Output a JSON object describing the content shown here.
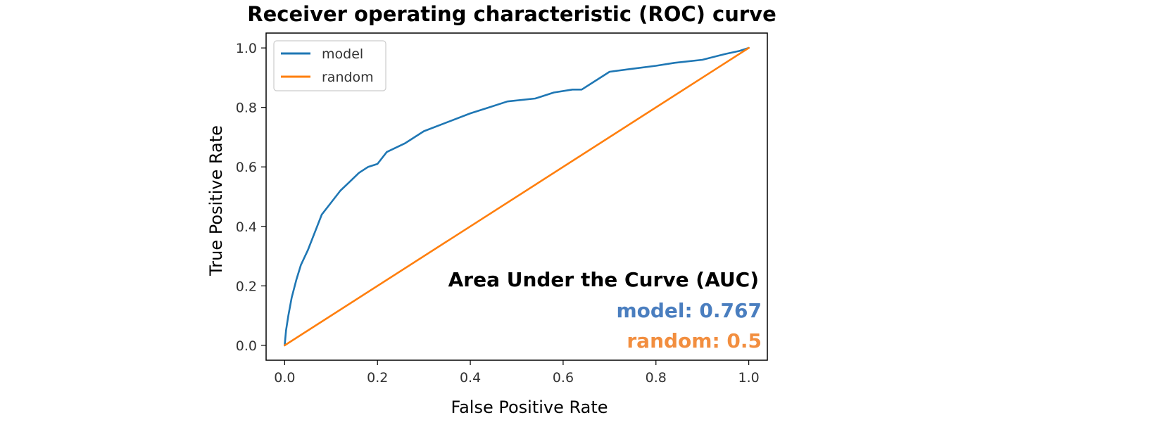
{
  "chart_data": {
    "type": "line",
    "title": "Receiver operating characteristic (ROC) curve",
    "xlabel": "False Positive Rate",
    "ylabel": "True Positive Rate",
    "xlim": [
      -0.04,
      1.04
    ],
    "ylim": [
      -0.05,
      1.05
    ],
    "xticks": [
      0.0,
      0.2,
      0.4,
      0.6,
      0.8,
      1.0
    ],
    "yticks": [
      0.0,
      0.2,
      0.4,
      0.6,
      0.8,
      1.0
    ],
    "xtick_labels": [
      "0.0",
      "0.2",
      "0.4",
      "0.6",
      "0.8",
      "1.0"
    ],
    "ytick_labels": [
      "0.0",
      "0.2",
      "0.4",
      "0.6",
      "0.8",
      "1.0"
    ],
    "grid": false,
    "legend_position": "top-left",
    "series": [
      {
        "name": "model",
        "color": "#1f77b4",
        "x": [
          0.0,
          0.003,
          0.008,
          0.015,
          0.025,
          0.035,
          0.05,
          0.06,
          0.07,
          0.08,
          0.1,
          0.12,
          0.14,
          0.16,
          0.18,
          0.2,
          0.22,
          0.26,
          0.3,
          0.35,
          0.4,
          0.44,
          0.48,
          0.54,
          0.58,
          0.62,
          0.64,
          0.66,
          0.7,
          0.75,
          0.8,
          0.84,
          0.9,
          0.95,
          0.98,
          1.0
        ],
        "y": [
          0.0,
          0.05,
          0.1,
          0.16,
          0.22,
          0.27,
          0.32,
          0.36,
          0.4,
          0.44,
          0.48,
          0.52,
          0.55,
          0.58,
          0.6,
          0.61,
          0.65,
          0.68,
          0.72,
          0.75,
          0.78,
          0.8,
          0.82,
          0.83,
          0.85,
          0.86,
          0.86,
          0.88,
          0.92,
          0.93,
          0.94,
          0.95,
          0.96,
          0.98,
          0.99,
          1.0
        ]
      },
      {
        "name": "random",
        "color": "#ff7f0e",
        "x": [
          0.0,
          1.0
        ],
        "y": [
          0.0,
          1.0
        ]
      }
    ]
  },
  "annotation": {
    "heading": "Area Under the Curve (AUC)",
    "model_auc": "model: 0.767",
    "random_auc": "random: 0.5",
    "model_color": "#4a7ebf",
    "random_color": "#f28e3f"
  }
}
